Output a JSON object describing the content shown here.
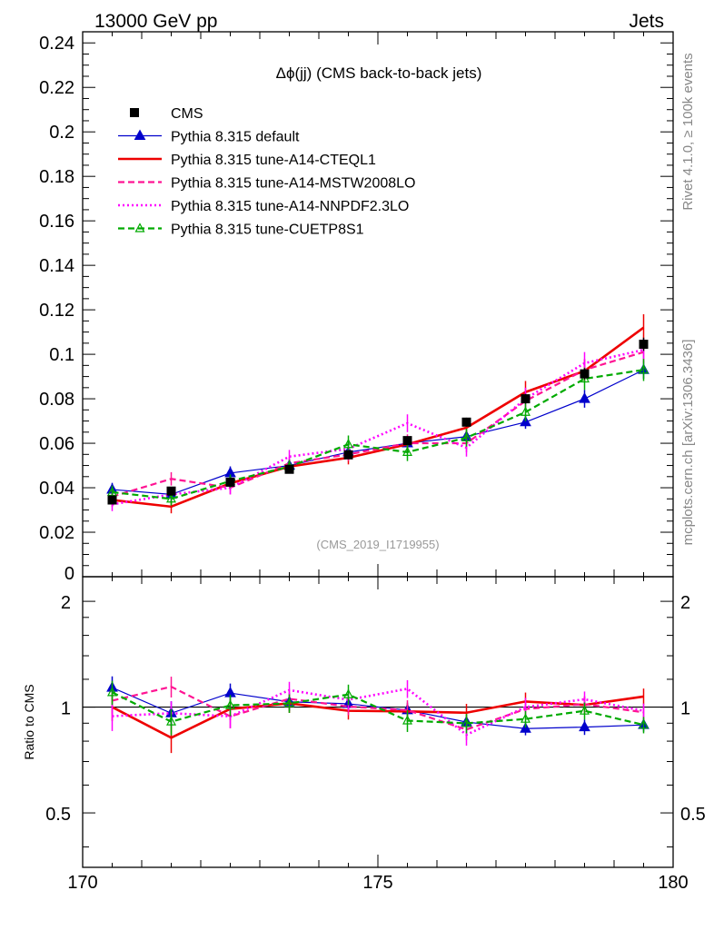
{
  "header": {
    "left_label": "13000 GeV pp",
    "right_label": "Jets"
  },
  "side_labels": {
    "rivet": "Rivet 4.1.0, ≥ 100k events",
    "mcplots": "mcplots.cern.ch [arXiv:1306.3436]"
  },
  "chart_data": {
    "type": "scatter",
    "title": "Δϕ(jj) (CMS back-to-back jets)",
    "watermark": "(CMS_2019_I1719955)",
    "xlabel": "",
    "ylabel": "",
    "ratio_ylabel": "Ratio to CMS",
    "xlim": [
      170,
      180
    ],
    "ylim": [
      0,
      0.245
    ],
    "ratio_ylim": [
      0.35,
      2.35
    ],
    "x_ticks": [
      "170",
      "175",
      "180"
    ],
    "y_ticks": [
      "0",
      "0.02",
      "0.04",
      "0.06",
      "0.08",
      "0.1",
      "0.12",
      "0.14",
      "0.16",
      "0.18",
      "0.2",
      "0.22",
      "0.24"
    ],
    "ratio_ticks": [
      "0.5",
      "1",
      "2"
    ],
    "ratio_ticks_right": [
      "0.5",
      "1",
      "2"
    ],
    "x": [
      170.5,
      171.5,
      172.5,
      173.5,
      174.5,
      175.5,
      176.5,
      177.5,
      178.5,
      179.5
    ],
    "data": {
      "name": "CMS",
      "values": [
        0.0345,
        0.0385,
        0.0425,
        0.0483,
        0.0548,
        0.0612,
        0.0695,
        0.08,
        0.0912,
        0.1045
      ],
      "errors": [
        0.0015,
        0.0015,
        0.0015,
        0.0015,
        0.0015,
        0.0018,
        0.002,
        0.0022,
        0.0025,
        0.003
      ]
    },
    "series": [
      {
        "name": "Pythia 8.315 default",
        "color": "#0000cc",
        "line": "solid",
        "marker": "triangle-filled",
        "values": [
          0.0392,
          0.037,
          0.0466,
          0.05,
          0.056,
          0.06,
          0.063,
          0.0695,
          0.08,
          0.093
        ],
        "errors": [
          0.003,
          0.003,
          0.003,
          0.003,
          0.003,
          0.003,
          0.003,
          0.003,
          0.004,
          0.004
        ]
      },
      {
        "name": "Pythia 8.315 tune-A14-CTEQL1",
        "color": "#ee0000",
        "line": "solid",
        "marker": "none",
        "values": [
          0.0345,
          0.0315,
          0.042,
          0.0495,
          0.0535,
          0.0595,
          0.067,
          0.083,
          0.0925,
          0.112
        ],
        "errors": [
          0.003,
          0.003,
          0.003,
          0.003,
          0.003,
          0.003,
          0.004,
          0.005,
          0.005,
          0.006
        ]
      },
      {
        "name": "Pythia 8.315 tune-A14-MSTW2008LO",
        "color": "#ff1493",
        "line": "dashed",
        "marker": "none",
        "values": [
          0.036,
          0.044,
          0.04,
          0.051,
          0.055,
          0.06,
          0.06,
          0.079,
          0.093,
          0.101
        ],
        "errors": [
          0.003,
          0.003,
          0.003,
          0.003,
          0.003,
          0.004,
          0.004,
          0.004,
          0.005,
          0.005
        ]
      },
      {
        "name": "Pythia 8.315 tune-A14-NNPDF2.3LO",
        "color": "#ff00ff",
        "line": "dotted",
        "marker": "none",
        "values": [
          0.0325,
          0.037,
          0.04,
          0.054,
          0.0575,
          0.069,
          0.058,
          0.08,
          0.096,
          0.102
        ],
        "errors": [
          0.003,
          0.003,
          0.003,
          0.003,
          0.004,
          0.004,
          0.004,
          0.005,
          0.005,
          0.005
        ]
      },
      {
        "name": "Pythia 8.315 tune-CUETP8S1",
        "color": "#00aa00",
        "line": "dashed",
        "marker": "triangle-open",
        "values": [
          0.038,
          0.035,
          0.043,
          0.0495,
          0.0595,
          0.056,
          0.0625,
          0.074,
          0.089,
          0.093
        ],
        "errors": [
          0.003,
          0.003,
          0.003,
          0.003,
          0.004,
          0.004,
          0.004,
          0.004,
          0.005,
          0.005
        ]
      }
    ]
  }
}
